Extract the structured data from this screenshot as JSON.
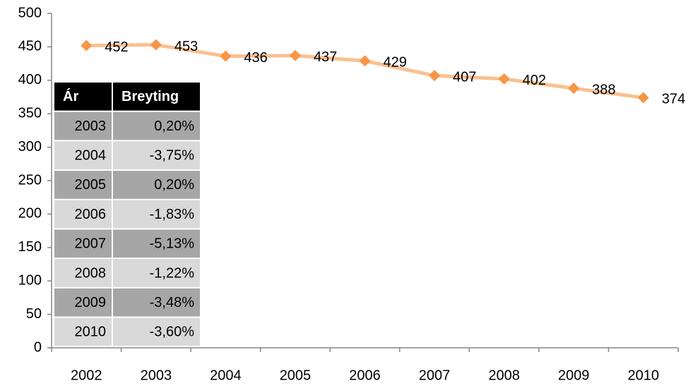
{
  "chart_data": {
    "type": "line",
    "categories": [
      "2002",
      "2003",
      "2004",
      "2005",
      "2006",
      "2007",
      "2008",
      "2009",
      "2010"
    ],
    "values": [
      452,
      453,
      436,
      437,
      429,
      407,
      402,
      388,
      374
    ],
    "color": "#f79646",
    "line_color": "#fac090",
    "ylim": [
      0,
      500
    ],
    "yticks": [
      0,
      50,
      100,
      150,
      200,
      250,
      300,
      350,
      400,
      450,
      500
    ],
    "grid": false
  },
  "table": {
    "header": [
      "Ár",
      "Breyting"
    ],
    "rows": [
      [
        "2003",
        "0,20%"
      ],
      [
        "2004",
        "-3,75%"
      ],
      [
        "2005",
        "0,20%"
      ],
      [
        "2006",
        "-1,83%"
      ],
      [
        "2007",
        "-5,13%"
      ],
      [
        "2008",
        "-1,22%"
      ],
      [
        "2009",
        "-3,48%"
      ],
      [
        "2010",
        "-3,60%"
      ]
    ]
  }
}
